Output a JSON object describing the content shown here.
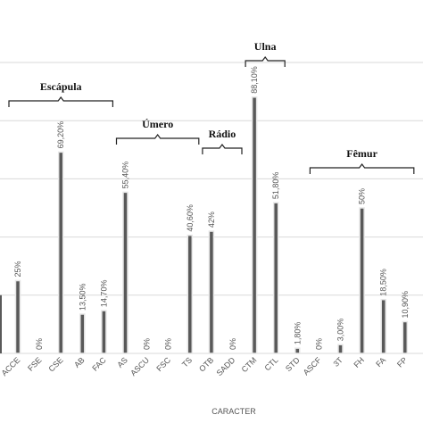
{
  "chart_data": {
    "type": "bar",
    "xlabel": "CARACTER",
    "ylabel": "",
    "ylim": [
      0,
      100
    ],
    "grid": true,
    "bar_color": "#595959",
    "grid_color": "#d9d9d9",
    "categories": [
      "ACCE",
      "FSE",
      "CSE",
      "AB",
      "FAC",
      "AS",
      "ASCU",
      "FSC",
      "TS",
      "OTB",
      "SADD",
      "CTM",
      "CTL",
      "STD",
      "ASCF",
      "3T",
      "FH",
      "FA",
      "FP"
    ],
    "values": [
      25,
      0,
      69.2,
      13.5,
      14.7,
      55.4,
      0,
      0,
      40.6,
      42,
      0,
      88.1,
      51.8,
      1.8,
      0,
      3,
      50,
      18.5,
      10.9
    ],
    "value_labels": [
      "25%",
      "0%",
      "69,20%",
      "13,50%",
      "14,70%",
      "55,40%",
      "0%",
      "0%",
      "40,60%",
      "42%",
      "0%",
      "88,10%",
      "51,80%",
      "1,80%",
      "0%",
      "3,00%",
      "50%",
      "18,50%",
      "10,90%"
    ],
    "groups": [
      {
        "label": "Escápula",
        "from": "ACCE",
        "to": "FAC"
      },
      {
        "label": "Úmero",
        "from": "AS",
        "to": "TS"
      },
      {
        "label": "Rádio",
        "from": "OTB",
        "to": "SADD"
      },
      {
        "label": "Ulna",
        "from": "CTM",
        "to": "CTL"
      },
      {
        "label": "Fêmur",
        "from": "ASCF",
        "to": "FP"
      }
    ]
  }
}
